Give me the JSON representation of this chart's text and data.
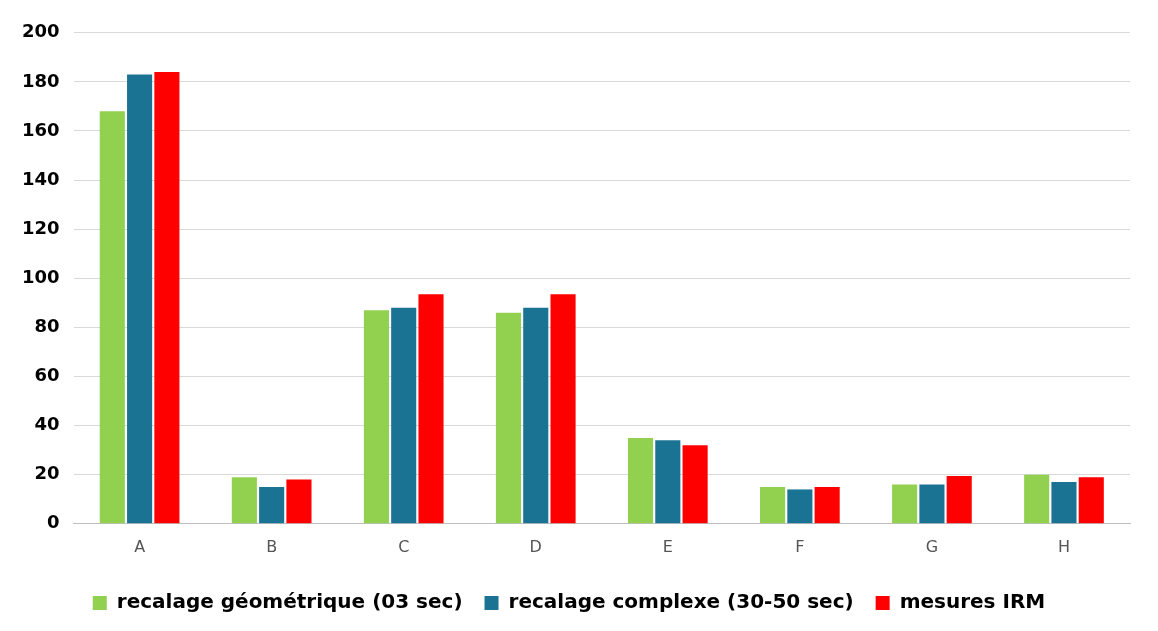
{
  "chart_data": {
    "type": "bar",
    "categories": [
      "A",
      "B",
      "C",
      "D",
      "E",
      "F",
      "G",
      "H"
    ],
    "series": [
      {
        "name": "recalage géométrique (03 sec)",
        "color": "#92d050",
        "values": [
          168,
          19,
          87,
          86,
          35,
          15,
          16,
          20
        ]
      },
      {
        "name": "recalage complexe (30-50 sec)",
        "color": "#1b7394",
        "values": [
          183,
          15,
          88,
          88,
          34,
          14,
          16,
          17
        ]
      },
      {
        "name": "mesures IRM",
        "color": "#ff0000",
        "values": [
          184,
          18,
          93.5,
          93.5,
          32,
          15,
          19.5,
          19
        ]
      }
    ],
    "ylim": [
      0,
      200
    ],
    "yticks": [
      0,
      20,
      40,
      60,
      80,
      100,
      120,
      140,
      160,
      180,
      200
    ],
    "grid": "y",
    "legend": "bottom"
  }
}
